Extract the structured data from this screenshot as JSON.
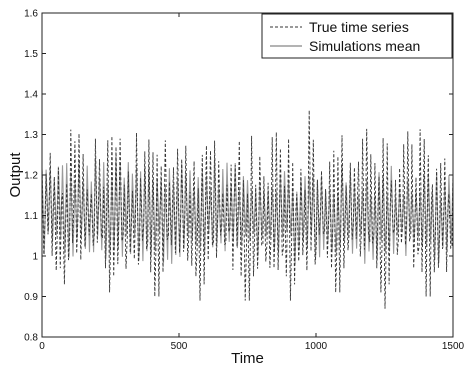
{
  "chart_data": {
    "type": "line",
    "title": "",
    "xlabel": "Time",
    "ylabel": "Output",
    "xlim": [
      0,
      1500
    ],
    "ylim": [
      0.8,
      1.6
    ],
    "x_ticks": [
      "0",
      "500",
      "1000",
      "1500"
    ],
    "y_ticks": [
      "0.8",
      "0.9",
      "1",
      "1.1",
      "1.2",
      "1.3",
      "1.4",
      "1.5",
      "1.6"
    ],
    "grid": false,
    "legend_position": "top-right",
    "series": [
      {
        "name": "True time series",
        "style": "dashed",
        "color": "#333333",
        "summary": {
          "x_start": 0,
          "x_end": 1500,
          "cycle_length": 15,
          "high_values_range": [
            1.15,
            1.36
          ],
          "low_values_range": [
            0.86,
            1.06
          ],
          "deepest_dips_x": [
            80,
            250,
            420,
            580,
            750,
            910,
            1080,
            1250,
            1410
          ],
          "deepest_dips_y": [
            0.92,
            0.9,
            0.87,
            0.88,
            0.86,
            0.88,
            0.88,
            0.86,
            0.87
          ],
          "max_peak": [
            975,
            1.36
          ]
        }
      },
      {
        "name": "Simulations mean",
        "style": "solid",
        "color": "#9a9a9a",
        "summary": {
          "x_start": 0,
          "x_end": 1500,
          "cycle_length": 15,
          "high_values_range": [
            1.15,
            1.25
          ],
          "low_values_range": [
            0.98,
            1.06
          ]
        }
      }
    ]
  }
}
